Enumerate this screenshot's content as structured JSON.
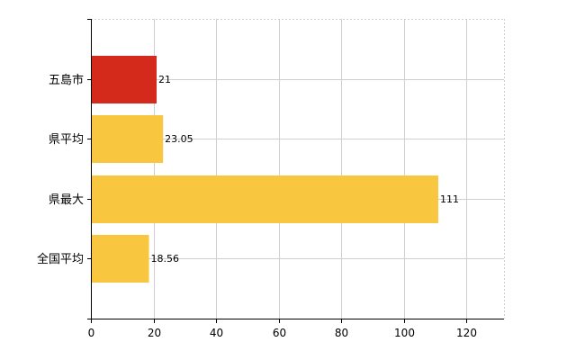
{
  "chart_data": {
    "type": "bar",
    "orientation": "horizontal",
    "categories": [
      "五島市",
      "県平均",
      "県最大",
      "全国平均"
    ],
    "values": [
      21,
      23.05,
      111,
      18.56
    ],
    "value_labels": [
      "21",
      "23.05",
      "111",
      "18.56"
    ],
    "bar_colors": [
      "#d42a1c",
      "#f9c73f",
      "#f9c73f",
      "#f9c73f"
    ],
    "xlim": [
      0,
      132
    ],
    "x_ticks": [
      0,
      20,
      40,
      60,
      80,
      100,
      120
    ],
    "x_tick_labels": [
      "0",
      "20",
      "40",
      "60",
      "80",
      "100",
      "120"
    ],
    "grid": true,
    "title": "",
    "xlabel": "",
    "ylabel": ""
  }
}
